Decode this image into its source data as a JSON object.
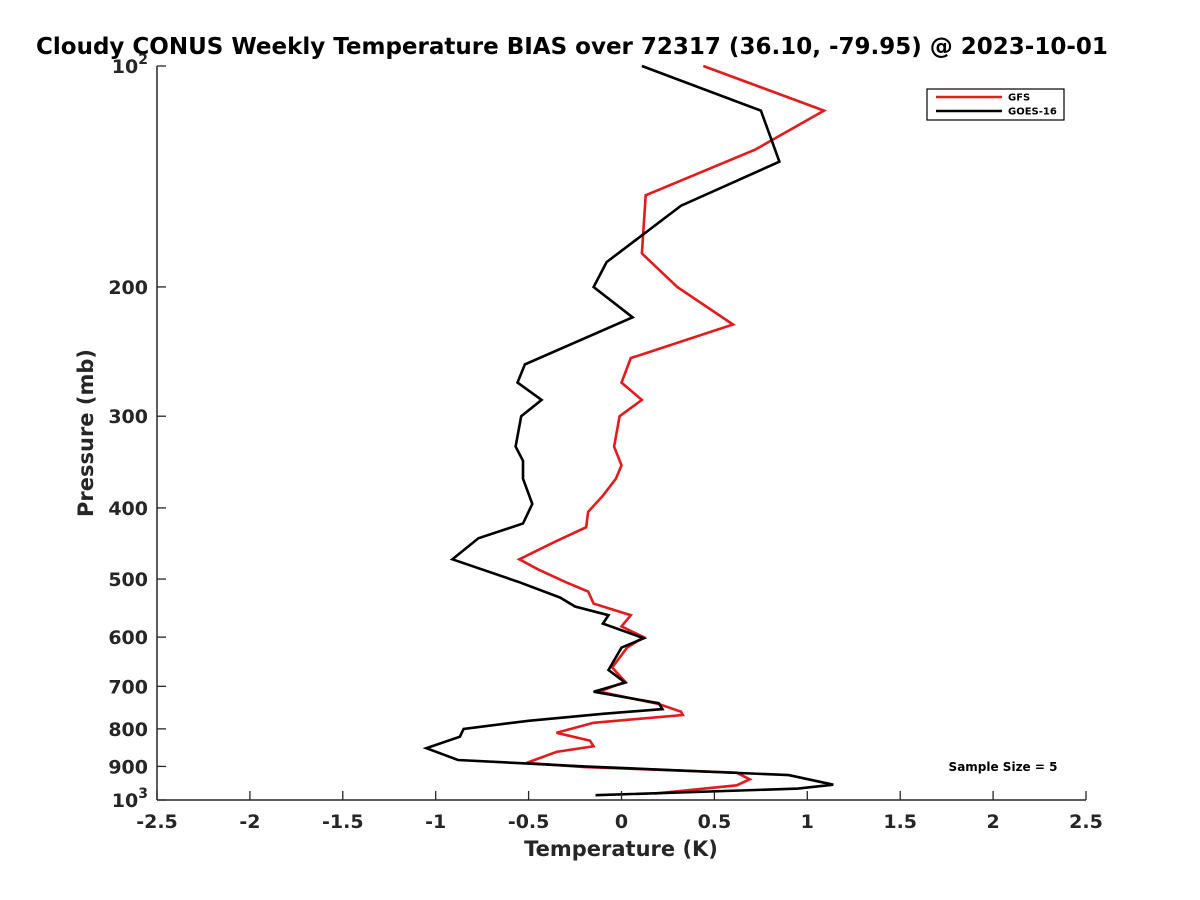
{
  "chart_data": {
    "type": "line",
    "title": "Cloudy CONUS Weekly Temperature BIAS over 72317 (36.10, -79.95) @ 2023-10-01",
    "xlabel": "Temperature (K)",
    "ylabel": "Pressure (mb)",
    "xlim": [
      -2.5,
      2.5
    ],
    "ylim": [
      100,
      1000
    ],
    "y_scale": "log",
    "y_reversed": true,
    "grid": false,
    "legend_position": "top-right",
    "x_ticks": [
      "-2.5",
      "-2",
      "-1.5",
      "-1",
      "-0.5",
      "0",
      "0.5",
      "1",
      "1.5",
      "2",
      "2.5"
    ],
    "x_tick_values": [
      -2.5,
      -2,
      -1.5,
      -1,
      -0.5,
      0,
      0.5,
      1,
      1.5,
      2,
      2.5
    ],
    "y_tick_values": [
      100,
      200,
      300,
      400,
      500,
      600,
      700,
      800,
      900,
      1000
    ],
    "y_tick_labels": [
      {
        "base": "10",
        "exp": "2"
      },
      {
        "base": "200"
      },
      {
        "base": "300"
      },
      {
        "base": "400"
      },
      {
        "base": "500"
      },
      {
        "base": "600"
      },
      {
        "base": "700"
      },
      {
        "base": "800"
      },
      {
        "base": "900"
      },
      {
        "base": "10",
        "exp": "3"
      }
    ],
    "series": [
      {
        "name": "GFS",
        "color": "#e41a1c",
        "points": [
          [
            0.44,
            100
          ],
          [
            1.09,
            115
          ],
          [
            0.72,
            130
          ],
          [
            0.13,
            150
          ],
          [
            0.11,
            180
          ],
          [
            0.3,
            200
          ],
          [
            0.6,
            225
          ],
          [
            0.05,
            250
          ],
          [
            0.0,
            270
          ],
          [
            0.11,
            285
          ],
          [
            -0.01,
            300
          ],
          [
            -0.04,
            330
          ],
          [
            0.0,
            350
          ],
          [
            -0.03,
            365
          ],
          [
            -0.1,
            385
          ],
          [
            -0.18,
            405
          ],
          [
            -0.19,
            425
          ],
          [
            -0.36,
            445
          ],
          [
            -0.55,
            470
          ],
          [
            -0.45,
            485
          ],
          [
            -0.3,
            505
          ],
          [
            -0.18,
            520
          ],
          [
            -0.15,
            540
          ],
          [
            0.05,
            560
          ],
          [
            0.0,
            580
          ],
          [
            0.12,
            600
          ],
          [
            0.03,
            620
          ],
          [
            -0.05,
            660
          ],
          [
            0.02,
            690
          ],
          [
            -0.12,
            712
          ],
          [
            0.2,
            740
          ],
          [
            0.32,
            758
          ],
          [
            0.33,
            766
          ],
          [
            -0.15,
            785
          ],
          [
            -0.35,
            810
          ],
          [
            -0.17,
            830
          ],
          [
            -0.15,
            845
          ],
          [
            -0.35,
            860
          ],
          [
            -0.51,
            890
          ],
          [
            -0.2,
            902
          ],
          [
            0.62,
            918
          ],
          [
            0.69,
            937
          ],
          [
            0.62,
            955
          ],
          [
            0.18,
            980
          ]
        ]
      },
      {
        "name": "GOES-16",
        "color": "#000000",
        "points": [
          [
            0.11,
            100
          ],
          [
            0.75,
            115
          ],
          [
            0.85,
            135
          ],
          [
            0.32,
            155
          ],
          [
            -0.08,
            185
          ],
          [
            -0.15,
            200
          ],
          [
            0.06,
            220
          ],
          [
            -0.52,
            255
          ],
          [
            -0.56,
            270
          ],
          [
            -0.43,
            285
          ],
          [
            -0.54,
            300
          ],
          [
            -0.57,
            330
          ],
          [
            -0.53,
            345
          ],
          [
            -0.53,
            365
          ],
          [
            -0.48,
            395
          ],
          [
            -0.53,
            420
          ],
          [
            -0.77,
            440
          ],
          [
            -0.91,
            470
          ],
          [
            -0.55,
            505
          ],
          [
            -0.33,
            530
          ],
          [
            -0.25,
            545
          ],
          [
            -0.07,
            560
          ],
          [
            -0.1,
            575
          ],
          [
            0.12,
            602
          ],
          [
            0.0,
            620
          ],
          [
            -0.07,
            665
          ],
          [
            0.02,
            692
          ],
          [
            -0.15,
            712
          ],
          [
            0.2,
            738
          ],
          [
            0.22,
            752
          ],
          [
            -0.1,
            763
          ],
          [
            -0.5,
            780
          ],
          [
            -0.85,
            800
          ],
          [
            -0.87,
            820
          ],
          [
            -1.05,
            850
          ],
          [
            -0.88,
            882
          ],
          [
            -0.2,
            900
          ],
          [
            0.9,
            925
          ],
          [
            1.14,
            953
          ],
          [
            0.95,
            965
          ],
          [
            -0.14,
            985
          ]
        ]
      }
    ],
    "annotations": [
      "Sample Size = 5"
    ]
  }
}
